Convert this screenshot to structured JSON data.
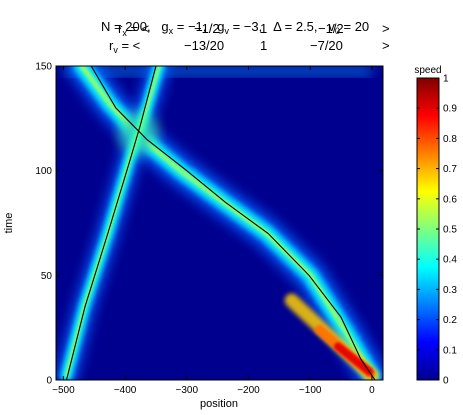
{
  "title": {
    "line1": {
      "n": "N = 200,",
      "gx_lbl": "g",
      "gx_sub": "x",
      "gx_val": " = −1,",
      "gv_lbl": "g",
      "gv_sub": "v",
      "gv_val": " = −3,",
      "delta": "Δ = 2.5,",
      "v0_lbl": "v",
      "v0_sub": "0",
      "v0_val": " = 20"
    },
    "line2": {
      "lbl": "r",
      "sub": "x",
      "eq": " = <",
      "a": "−1/2",
      "b": "1",
      "c": "−1/2",
      "end": ">"
    },
    "line3": {
      "lbl": "r",
      "sub": "v",
      "eq": " = <",
      "a": "−13/20",
      "b": "1",
      "c": "−7/20",
      "end": ">"
    }
  },
  "chart_data": {
    "type": "heatmap",
    "xlabel": "position",
    "ylabel": "time",
    "xlim": [
      -512,
      18
    ],
    "ylim": [
      0,
      150
    ],
    "xticks": [
      -500,
      -400,
      -300,
      -200,
      -100,
      0
    ],
    "yticks": [
      0,
      50,
      100,
      150
    ],
    "colorbar": {
      "label": "speed",
      "range": [
        0,
        1
      ],
      "ticks": [
        0,
        0.1,
        0.2,
        0.3,
        0.4,
        0.5,
        0.6,
        0.7,
        0.8,
        0.9,
        1
      ],
      "colormap": "jet"
    },
    "trajectories": [
      {
        "points": [
          [
            -495,
            0
          ],
          [
            -465,
            35
          ],
          [
            -428,
            70
          ],
          [
            -392,
            105
          ],
          [
            -375,
            122
          ],
          [
            -350,
            150
          ]
        ]
      },
      {
        "points": [
          [
            5,
            0
          ],
          [
            -18,
            10
          ],
          [
            -50,
            30
          ],
          [
            -102,
            50
          ],
          [
            -168,
            70
          ],
          [
            -238,
            85
          ],
          [
            -300,
            100
          ],
          [
            -365,
            115
          ],
          [
            -415,
            130
          ],
          [
            -455,
            150
          ]
        ]
      }
    ],
    "high_speed_bands": [
      {
        "points": [
          [
            0,
            2
          ],
          [
            -40,
            22
          ],
          [
            -100,
            50
          ],
          [
            -170,
            70
          ],
          [
            -245,
            86
          ],
          [
            -310,
            100
          ],
          [
            -375,
            116
          ],
          [
            -425,
            132
          ],
          [
            -470,
            150
          ]
        ]
      },
      {
        "points": [
          [
            -495,
            2
          ],
          [
            -466,
            35
          ],
          [
            -430,
            68
          ],
          [
            -393,
            105
          ],
          [
            -365,
            130
          ],
          [
            -345,
            150
          ]
        ]
      }
    ]
  }
}
